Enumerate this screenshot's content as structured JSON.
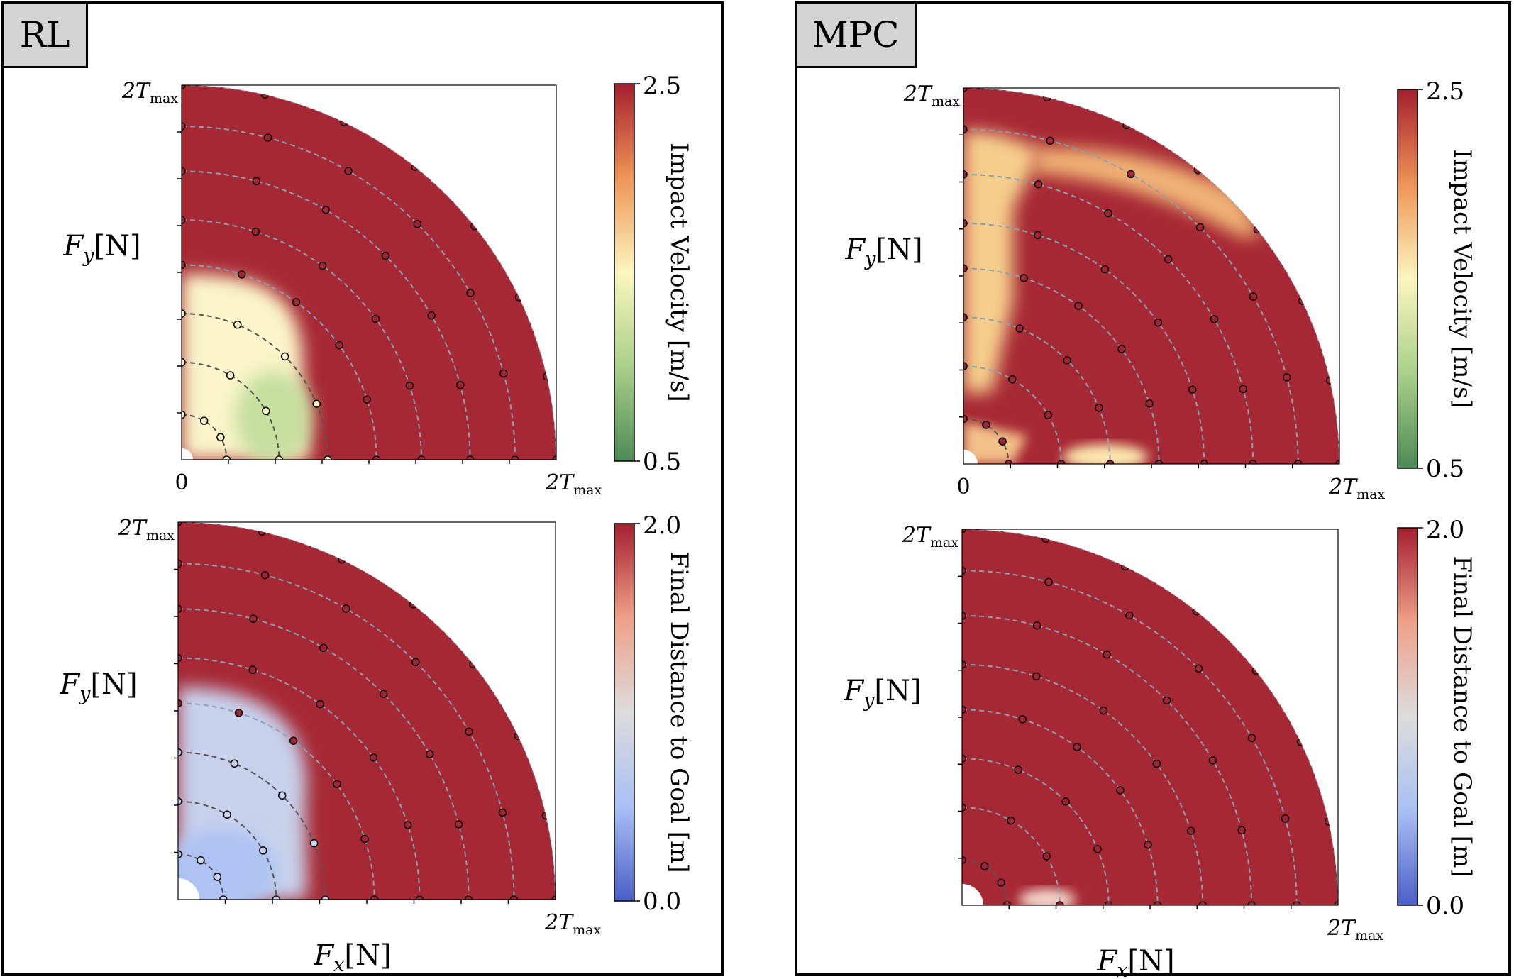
{
  "panels": [
    {
      "name": "RL",
      "label": "RL"
    },
    {
      "name": "MPC",
      "label": "MPC"
    }
  ],
  "axis_text": {
    "fy": "F",
    "fy_sub": "y",
    "fx": "F",
    "fx_sub": "x",
    "unit": "[N]",
    "tmax": "2T",
    "tmax_sub": "max",
    "zero": "0"
  },
  "colorbars": {
    "impact": {
      "label": "Impact Velocity [m/s]",
      "max": "2.5",
      "min": "0.5"
    },
    "distance": {
      "label": "Final Distance to Goal [m]",
      "max": "2.0",
      "min": "0.0"
    }
  },
  "colors": {
    "impact_low": "#4e8a55",
    "impact_mid": "#fcf6bf",
    "impact_high": "#a51f2f",
    "distance_low": "#4a5fc7",
    "distance_mid": "#dddcdc",
    "distance_high": "#a51f2f"
  },
  "chart_data": [
    {
      "type": "heatmap",
      "panel": "RL",
      "metric": "Impact Velocity [m/s]",
      "xlabel": "",
      "ylabel": "F_y[N]",
      "xlim": [
        "0",
        "2T_max"
      ],
      "ylim": [
        "0",
        "2T_max"
      ],
      "clim": [
        0.5,
        2.5
      ],
      "approx_regions": [
        {
          "radius_fraction": [
            0.0,
            0.35
          ],
          "value": 1.3
        },
        {
          "radius_fraction": [
            0.35,
            1.0
          ],
          "value": 2.4
        }
      ]
    },
    {
      "type": "heatmap",
      "panel": "MPC",
      "metric": "Impact Velocity [m/s]",
      "xlabel": "",
      "ylabel": "F_y[N]",
      "xlim": [
        "0",
        "2T_max"
      ],
      "ylim": [
        "0",
        "2T_max"
      ],
      "clim": [
        0.5,
        2.5
      ],
      "approx_regions": [
        {
          "radius_fraction": [
            0.0,
            1.0
          ],
          "value": 2.4
        },
        {
          "note": "band of lower values near the y axis and upper arc",
          "value": 1.8
        }
      ]
    },
    {
      "type": "heatmap",
      "panel": "RL",
      "metric": "Final Distance to Goal [m]",
      "xlabel": "F_x[N]",
      "ylabel": "F_y[N]",
      "xlim": [
        "",
        "2T_max"
      ],
      "ylim": [
        "",
        "2T_max"
      ],
      "clim": [
        0.0,
        2.0
      ],
      "approx_regions": [
        {
          "radius_fraction": [
            0.0,
            0.35
          ],
          "value": 0.7
        },
        {
          "radius_fraction": [
            0.35,
            1.0
          ],
          "value": 1.95
        }
      ]
    },
    {
      "type": "heatmap",
      "panel": "MPC",
      "metric": "Final Distance to Goal [m]",
      "xlabel": "F_x[N]",
      "ylabel": "F_y[N]",
      "xlim": [
        "",
        "2T_max"
      ],
      "ylim": [
        "",
        "2T_max"
      ],
      "clim": [
        0.0,
        2.0
      ],
      "approx_regions": [
        {
          "radius_fraction": [
            0.0,
            1.0
          ],
          "value": 1.95
        }
      ]
    }
  ]
}
